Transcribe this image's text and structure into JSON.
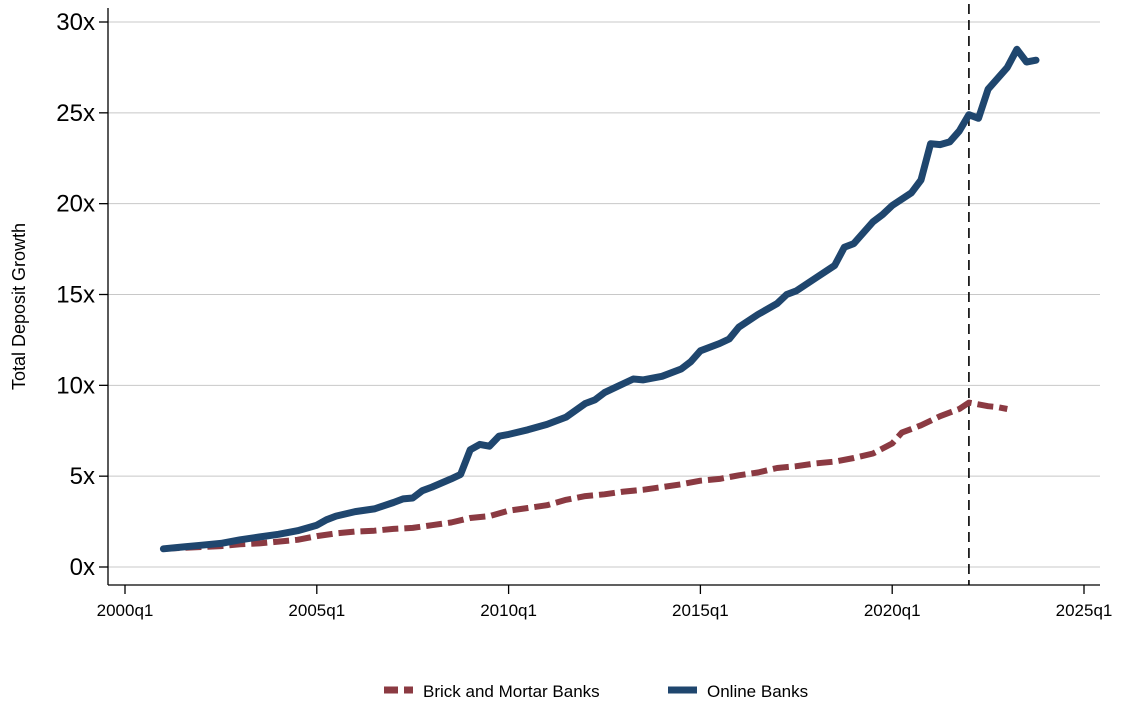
{
  "chart_data": {
    "type": "line",
    "title": "",
    "xlabel": "",
    "ylabel": "Total Deposit Growth",
    "xlim": [
      2000.0,
      2025.0
    ],
    "ylim": [
      0,
      30
    ],
    "x_ticks": [
      {
        "value": 2000.0,
        "label": "2000q1"
      },
      {
        "value": 2005.0,
        "label": "2005q1"
      },
      {
        "value": 2010.0,
        "label": "2010q1"
      },
      {
        "value": 2015.0,
        "label": "2015q1"
      },
      {
        "value": 2020.0,
        "label": "2020q1"
      },
      {
        "value": 2025.0,
        "label": "2025q1"
      }
    ],
    "y_ticks": [
      {
        "value": 0,
        "label": "0x"
      },
      {
        "value": 5,
        "label": "5x"
      },
      {
        "value": 10,
        "label": "10x"
      },
      {
        "value": 15,
        "label": "15x"
      },
      {
        "value": 20,
        "label": "20x"
      },
      {
        "value": 25,
        "label": "25x"
      },
      {
        "value": 30,
        "label": "30x"
      }
    ],
    "grid": "horizontal",
    "legend_position": "bottom",
    "vline": {
      "x": 2022.0,
      "style": "dashed"
    },
    "series": [
      {
        "name": "Brick and Mortar Banks",
        "color": "#8b3a42",
        "style": "dashed",
        "points": [
          [
            2001.0,
            1.0
          ],
          [
            2001.5,
            1.05
          ],
          [
            2002.0,
            1.1
          ],
          [
            2002.5,
            1.15
          ],
          [
            2003.0,
            1.25
          ],
          [
            2003.5,
            1.3
          ],
          [
            2004.0,
            1.4
          ],
          [
            2004.5,
            1.5
          ],
          [
            2005.0,
            1.7
          ],
          [
            2005.5,
            1.85
          ],
          [
            2006.0,
            1.95
          ],
          [
            2006.5,
            2.0
          ],
          [
            2007.0,
            2.1
          ],
          [
            2007.5,
            2.15
          ],
          [
            2008.0,
            2.3
          ],
          [
            2008.5,
            2.45
          ],
          [
            2009.0,
            2.7
          ],
          [
            2009.5,
            2.8
          ],
          [
            2010.0,
            3.1
          ],
          [
            2010.5,
            3.25
          ],
          [
            2011.0,
            3.4
          ],
          [
            2011.5,
            3.7
          ],
          [
            2012.0,
            3.9
          ],
          [
            2012.5,
            4.0
          ],
          [
            2013.0,
            4.15
          ],
          [
            2013.5,
            4.25
          ],
          [
            2014.0,
            4.4
          ],
          [
            2014.5,
            4.55
          ],
          [
            2015.0,
            4.75
          ],
          [
            2015.5,
            4.85
          ],
          [
            2016.0,
            5.05
          ],
          [
            2016.5,
            5.2
          ],
          [
            2017.0,
            5.45
          ],
          [
            2017.5,
            5.55
          ],
          [
            2018.0,
            5.7
          ],
          [
            2018.5,
            5.8
          ],
          [
            2019.0,
            6.0
          ],
          [
            2019.5,
            6.25
          ],
          [
            2020.0,
            6.8
          ],
          [
            2020.25,
            7.4
          ],
          [
            2020.75,
            7.8
          ],
          [
            2021.25,
            8.3
          ],
          [
            2021.75,
            8.7
          ],
          [
            2022.0,
            9.05
          ],
          [
            2022.5,
            8.85
          ],
          [
            2022.75,
            8.8
          ],
          [
            2023.0,
            8.7
          ]
        ]
      },
      {
        "name": "Online Banks",
        "color": "#1f466e",
        "style": "solid",
        "points": [
          [
            2001.0,
            1.0
          ],
          [
            2001.5,
            1.1
          ],
          [
            2002.0,
            1.2
          ],
          [
            2002.5,
            1.3
          ],
          [
            2003.0,
            1.5
          ],
          [
            2003.5,
            1.65
          ],
          [
            2004.0,
            1.8
          ],
          [
            2004.5,
            2.0
          ],
          [
            2005.0,
            2.3
          ],
          [
            2005.25,
            2.6
          ],
          [
            2005.5,
            2.8
          ],
          [
            2006.0,
            3.05
          ],
          [
            2006.5,
            3.2
          ],
          [
            2007.0,
            3.55
          ],
          [
            2007.25,
            3.75
          ],
          [
            2007.5,
            3.8
          ],
          [
            2007.75,
            4.2
          ],
          [
            2008.0,
            4.4
          ],
          [
            2008.5,
            4.85
          ],
          [
            2008.75,
            5.1
          ],
          [
            2009.0,
            6.45
          ],
          [
            2009.25,
            6.75
          ],
          [
            2009.5,
            6.65
          ],
          [
            2009.75,
            7.2
          ],
          [
            2010.0,
            7.3
          ],
          [
            2010.5,
            7.55
          ],
          [
            2011.0,
            7.85
          ],
          [
            2011.5,
            8.25
          ],
          [
            2012.0,
            9.0
          ],
          [
            2012.25,
            9.2
          ],
          [
            2012.5,
            9.6
          ],
          [
            2013.0,
            10.1
          ],
          [
            2013.25,
            10.35
          ],
          [
            2013.5,
            10.3
          ],
          [
            2014.0,
            10.5
          ],
          [
            2014.5,
            10.9
          ],
          [
            2014.75,
            11.3
          ],
          [
            2015.0,
            11.9
          ],
          [
            2015.5,
            12.3
          ],
          [
            2015.75,
            12.55
          ],
          [
            2016.0,
            13.2
          ],
          [
            2016.5,
            13.9
          ],
          [
            2017.0,
            14.5
          ],
          [
            2017.25,
            15.0
          ],
          [
            2017.5,
            15.2
          ],
          [
            2018.0,
            15.9
          ],
          [
            2018.5,
            16.6
          ],
          [
            2018.75,
            17.6
          ],
          [
            2019.0,
            17.8
          ],
          [
            2019.5,
            19.0
          ],
          [
            2019.75,
            19.4
          ],
          [
            2020.0,
            19.9
          ],
          [
            2020.5,
            20.6
          ],
          [
            2020.75,
            21.3
          ],
          [
            2021.0,
            23.3
          ],
          [
            2021.25,
            23.25
          ],
          [
            2021.5,
            23.4
          ],
          [
            2021.75,
            24.0
          ],
          [
            2022.0,
            24.9
          ],
          [
            2022.25,
            24.7
          ],
          [
            2022.5,
            26.3
          ],
          [
            2022.75,
            26.9
          ],
          [
            2023.0,
            27.5
          ],
          [
            2023.25,
            28.5
          ],
          [
            2023.5,
            27.8
          ],
          [
            2023.75,
            27.9
          ]
        ]
      }
    ]
  }
}
